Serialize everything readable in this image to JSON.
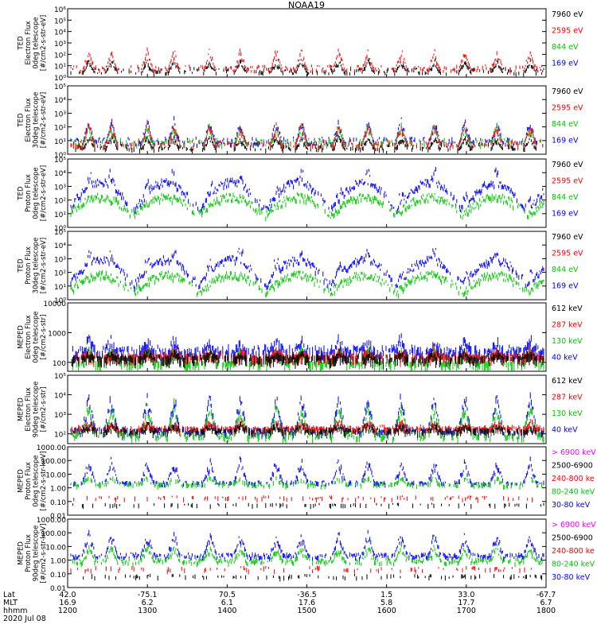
{
  "chart_data": {
    "type": "line",
    "title": "NOAA19",
    "x_axis": {
      "row_labels": [
        "Lat",
        "MLT",
        "hhmm"
      ],
      "date": "2020 Jul 08",
      "ticks": [
        {
          "lat": "42.0",
          "mlt": "16.9",
          "hhmm": "1200"
        },
        {
          "lat": "-75.1",
          "mlt": "6.2",
          "hhmm": "1300"
        },
        {
          "lat": "70.5",
          "mlt": "6.1",
          "hhmm": "1400"
        },
        {
          "lat": "-36.5",
          "mlt": "17.6",
          "hhmm": "1500"
        },
        {
          "lat": "1.5",
          "mlt": "5.8",
          "hhmm": "1600"
        },
        {
          "lat": "33.0",
          "mlt": "17.7",
          "hhmm": "1700"
        },
        {
          "lat": "-67.7",
          "mlt": "6.7",
          "hhmm": "1800"
        }
      ]
    },
    "panels": [
      {
        "ylabel": [
          "TED",
          "Electron Flux",
          "0deg telescope",
          "[#/cm2-s-str-eV]"
        ],
        "yscale": "log",
        "ylim_exp": [
          0,
          6
        ],
        "yticks": [
          "10⁰",
          "10¹",
          "10²",
          "10³",
          "10⁴",
          "10⁵",
          "10⁶"
        ],
        "legend": [
          {
            "label": "7960 eV",
            "color": "#000000"
          },
          {
            "label": "2595 eV",
            "color": "#ff0000"
          },
          {
            "label": "844 eV",
            "color": "#00c800"
          },
          {
            "label": "169 eV",
            "color": "#0000ff"
          }
        ],
        "series": [
          {
            "name": "7960 eV",
            "color": "#000000",
            "style": "bursts",
            "base": 0.4,
            "peak": 1.7
          },
          {
            "name": "2595 eV",
            "color": "#ff0000",
            "style": "bursts",
            "base": 0.6,
            "peak": 2.7
          }
        ]
      },
      {
        "ylabel": [
          "TED",
          "Electron Flux",
          "30deg telescope",
          "[#/cm2-s-str-eV]"
        ],
        "yscale": "log",
        "ylim_exp": [
          0,
          5
        ],
        "yticks": [
          "10⁰",
          "10¹",
          "10²",
          "10³",
          "10⁴",
          "10⁵"
        ],
        "legend": [
          {
            "label": "7960 eV",
            "color": "#000000"
          },
          {
            "label": "2595 eV",
            "color": "#ff0000"
          },
          {
            "label": "844 eV",
            "color": "#00c800"
          },
          {
            "label": "169 eV",
            "color": "#0000ff"
          }
        ],
        "series": [
          {
            "name": "169 eV",
            "color": "#0000ff",
            "style": "bursts",
            "base": 0.8,
            "peak": 2.8
          },
          {
            "name": "844 eV",
            "color": "#00c800",
            "style": "bursts",
            "base": 0.7,
            "peak": 2.4
          },
          {
            "name": "7960 eV",
            "color": "#000000",
            "style": "bursts",
            "base": 0.4,
            "peak": 1.5
          },
          {
            "name": "2595 eV",
            "color": "#ff0000",
            "style": "bursts",
            "base": 0.6,
            "peak": 2.6
          }
        ]
      },
      {
        "ylabel": [
          "TED",
          "Proton Flux",
          "0deg telescope",
          "[#/cm2-s-str-eV]"
        ],
        "yscale": "log",
        "ylim_exp": [
          0,
          5
        ],
        "yticks": [
          "10⁰",
          "10¹",
          "10²",
          "10³",
          "10⁴",
          "10⁵"
        ],
        "legend": [
          {
            "label": "7960 eV",
            "color": "#000000"
          },
          {
            "label": "2595 eV",
            "color": "#ff0000"
          },
          {
            "label": "844 eV",
            "color": "#00c800"
          },
          {
            "label": "169 eV",
            "color": "#0000ff"
          }
        ],
        "series": [
          {
            "name": "169 eV",
            "color": "#0000ff",
            "style": "arches",
            "base": 1.3,
            "peak": 3.4
          },
          {
            "name": "844 eV",
            "color": "#00c800",
            "style": "arches",
            "base": 1.0,
            "peak": 2.3
          }
        ]
      },
      {
        "ylabel": [
          "TED",
          "Proton Flux",
          "30deg telescope",
          "[#/cm2-s-str-eV]"
        ],
        "yscale": "log",
        "ylim_exp": [
          0,
          5
        ],
        "yticks": [
          "10⁰",
          "10¹",
          "10²",
          "10³",
          "10⁴",
          "10⁵"
        ],
        "legend": [
          {
            "label": "7960 eV",
            "color": "#000000"
          },
          {
            "label": "2595 eV",
            "color": "#ff0000"
          },
          {
            "label": "844 eV",
            "color": "#00c800"
          },
          {
            "label": "169 eV",
            "color": "#0000ff"
          }
        ],
        "series": [
          {
            "name": "169 eV",
            "color": "#0000ff",
            "style": "arches",
            "base": 1.1,
            "peak": 3.0
          },
          {
            "name": "844 eV",
            "color": "#00c800",
            "style": "arches",
            "base": 0.6,
            "peak": 1.9
          }
        ]
      },
      {
        "ylabel": [
          "MEPED",
          "Electron Flux",
          "0deg telescope",
          "[#/cm2-s-str]"
        ],
        "yscale": "log",
        "ylim_exp": [
          1.7,
          4
        ],
        "yticks": [
          "100",
          "1000",
          "10000"
        ],
        "ytick_exps": [
          2,
          3,
          4
        ],
        "legend": [
          {
            "label": "612 keV",
            "color": "#000000"
          },
          {
            "label": "287 keV",
            "color": "#ff0000"
          },
          {
            "label": "130 keV",
            "color": "#00c800"
          },
          {
            "label": "40 keV",
            "color": "#0000ff"
          }
        ],
        "series": [
          {
            "name": "40 keV",
            "color": "#0000ff",
            "style": "dense",
            "base": 2.3,
            "peak": 3.0
          },
          {
            "name": "130 keV",
            "color": "#00c800",
            "style": "band",
            "base": 2.0,
            "peak": 2.05
          },
          {
            "name": "287 keV",
            "color": "#ff0000",
            "style": "dense",
            "base": 2.15,
            "peak": 2.5
          },
          {
            "name": "612 keV",
            "color": "#000000",
            "style": "dense",
            "base": 2.1,
            "peak": 2.45
          }
        ]
      },
      {
        "ylabel": [
          "MEPED",
          "Electron Flux",
          "90deg telescope",
          "[#/cm2-s-str]"
        ],
        "yscale": "log",
        "ylim_exp": [
          1.5,
          5
        ],
        "yticks": [
          "10²",
          "10³",
          "10⁴",
          "10⁵"
        ],
        "ytick_exps": [
          2,
          3,
          4,
          5
        ],
        "legend": [
          {
            "label": "612 keV",
            "color": "#000000"
          },
          {
            "label": "287 keV",
            "color": "#ff0000"
          },
          {
            "label": "130 keV",
            "color": "#00c800"
          },
          {
            "label": "40 keV",
            "color": "#0000ff"
          }
        ],
        "series": [
          {
            "name": "40 keV",
            "color": "#0000ff",
            "style": "humps",
            "base": 2.2,
            "peak": 4.3
          },
          {
            "name": "130 keV",
            "color": "#00c800",
            "style": "humps",
            "base": 2.0,
            "peak": 3.8
          },
          {
            "name": "287 keV",
            "color": "#ff0000",
            "style": "dense",
            "base": 2.2,
            "peak": 2.8
          },
          {
            "name": "612 keV",
            "color": "#000000",
            "style": "dense",
            "base": 2.1,
            "peak": 2.7
          }
        ]
      },
      {
        "ylabel": [
          "MEPED",
          "Proton Flux",
          "0deg telescope",
          "[#/cm2-s-str-keV]"
        ],
        "yscale": "log",
        "ylim_exp": [
          -2,
          3
        ],
        "yticks": [
          "0.01",
          "0.10",
          "1.00",
          "10.00",
          "100.00",
          "1000.00"
        ],
        "ytick_exps": [
          -2,
          -1,
          0,
          1,
          2,
          3
        ],
        "legend": [
          {
            "label": "> 6900 keV",
            "color": "#ff00ff"
          },
          {
            "label": "2500-6900",
            "color": "#000000"
          },
          {
            "label": "240-800 ke",
            "color": "#ff0000"
          },
          {
            "label": "80-240 keV",
            "color": "#00c800"
          },
          {
            "label": "30-80 keV",
            "color": "#0000ff"
          }
        ],
        "series": [
          {
            "name": "30-80 keV",
            "color": "#0000ff",
            "style": "spikes",
            "base": 0.35,
            "peak": 2.3
          },
          {
            "name": "80-240 keV",
            "color": "#00c800",
            "style": "band",
            "base": 0.2,
            "peak": 0.45
          },
          {
            "name": "240-800 ke",
            "color": "#ff0000",
            "style": "dots",
            "base": -0.75,
            "peak": -0.55
          },
          {
            "name": "2500-6900",
            "color": "#000000",
            "style": "dots",
            "base": -1.2,
            "peak": -1.1
          }
        ]
      },
      {
        "ylabel": [
          "MEPED",
          "Proton Flux",
          "90deg telescope",
          "[#/cm2-s-str-keV]"
        ],
        "yscale": "log",
        "ylim_exp": [
          -2,
          3
        ],
        "yticks": [
          "0.01",
          "0.10",
          "1.00",
          "10.00",
          "100.00",
          "1000.00"
        ],
        "ytick_exps": [
          -2,
          -1,
          0,
          1,
          2,
          3
        ],
        "legend": [
          {
            "label": "> 6900 keV",
            "color": "#ff00ff"
          },
          {
            "label": "2500-6900",
            "color": "#000000"
          },
          {
            "label": "240-800 ke",
            "color": "#ff0000"
          },
          {
            "label": "80-240 keV",
            "color": "#00c800"
          },
          {
            "label": "30-80 keV",
            "color": "#0000ff"
          }
        ],
        "series": [
          {
            "name": "30-80 keV",
            "color": "#0000ff",
            "style": "humps",
            "base": 0.4,
            "peak": 2.2
          },
          {
            "name": "80-240 keV",
            "color": "#00c800",
            "style": "humps",
            "base": 0.0,
            "peak": 1.2
          },
          {
            "name": "240-800 ke",
            "color": "#ff0000",
            "style": "dots",
            "base": -0.7,
            "peak": -0.4
          },
          {
            "name": "2500-6900",
            "color": "#000000",
            "style": "dots",
            "base": -1.2,
            "peak": -1.0
          }
        ]
      }
    ],
    "events_hhmm": [
      1216,
      1233,
      1300,
      1320,
      1347,
      1410,
      1437,
      1456,
      1524,
      1546,
      1611,
      1636,
      1659,
      1723,
      1748
    ]
  }
}
